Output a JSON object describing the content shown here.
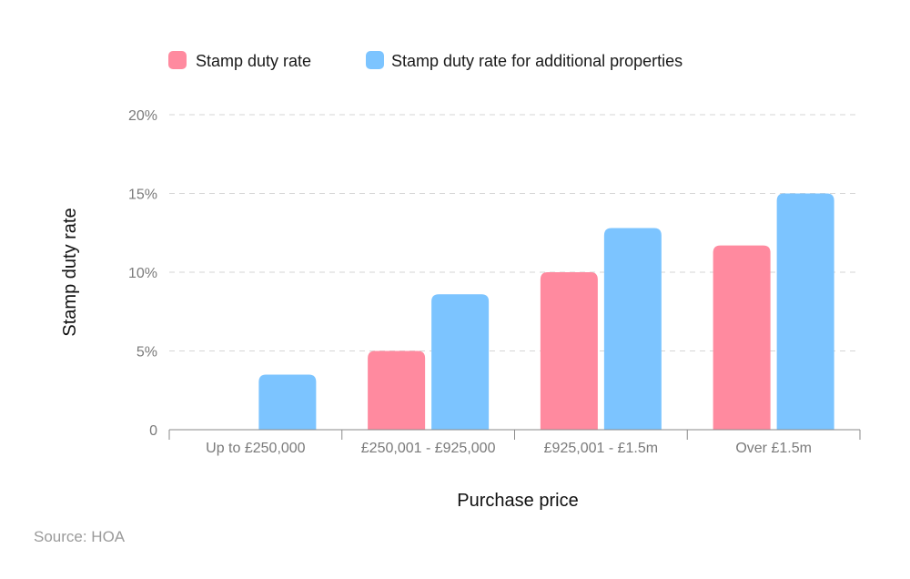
{
  "chart_data": {
    "type": "bar",
    "title": "",
    "xlabel": "Purchase price",
    "ylabel": "Stamp duty rate",
    "categories": [
      "Up to £250,000",
      "£250,001 - £925,000",
      "£925,001 - £1.5m",
      "Over £1.5m"
    ],
    "series": [
      {
        "name": "Stamp duty rate",
        "color": "#ff8a9f",
        "values": [
          0,
          5,
          10,
          11.7
        ]
      },
      {
        "name": "Stamp duty rate for additional properties",
        "color": "#7cc4ff",
        "values": [
          3.5,
          8.6,
          12.8,
          15
        ]
      }
    ],
    "ylim": [
      0,
      20
    ],
    "yticks": [
      0,
      5,
      10,
      15,
      20
    ],
    "ytick_labels": [
      "0",
      "5%",
      "10%",
      "15%",
      "20%"
    ],
    "grid": true,
    "legend_position": "top-left"
  },
  "source": "Source: HOA"
}
